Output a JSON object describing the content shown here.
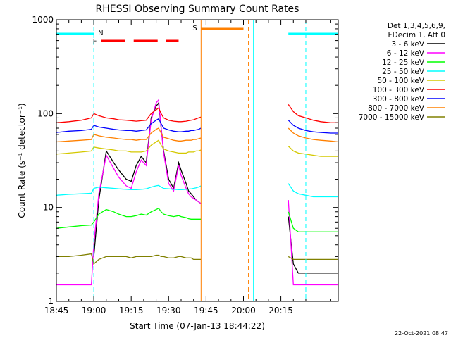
{
  "chart_data": {
    "type": "line",
    "title": "RHESSI Observing Summary Count Rates",
    "xlabel": "Start Time (07-Jan-13 18:44:22)",
    "ylabel": "Count Rate (s⁻¹ detector⁻¹)",
    "y_scale": "log",
    "ylim": [
      1,
      1000
    ],
    "xlim_min": [
      0,
      113
    ],
    "x_ticks": [
      {
        "min": 0,
        "label": "18:45"
      },
      {
        "min": 15,
        "label": "19:00"
      },
      {
        "min": 30,
        "label": "19:15"
      },
      {
        "min": 45,
        "label": "19:30"
      },
      {
        "min": 60,
        "label": "19:45"
      },
      {
        "min": 75,
        "label": "20:00"
      },
      {
        "min": 90,
        "label": "20:15"
      }
    ],
    "y_ticks": [
      {
        "val": 1,
        "label": "1"
      },
      {
        "val": 10,
        "label": "10"
      },
      {
        "val": 100,
        "label": "100"
      },
      {
        "val": 1000,
        "label": "1000"
      }
    ],
    "legend_header": [
      "Det 1,3,4,5,6,9,",
      "FDecim 1, Att 0"
    ],
    "legend_position": "right",
    "series": [
      {
        "name": "3 - 6 keV",
        "color": "#000000"
      },
      {
        "name": "6 - 12 keV",
        "color": "#ff00ff"
      },
      {
        "name": "12 - 25 keV",
        "color": "#00ff00"
      },
      {
        "name": "25 - 50 keV",
        "color": "#00ffff"
      },
      {
        "name": "50 - 100 keV",
        "color": "#d4c800"
      },
      {
        "name": "100 - 300 keV",
        "color": "#ff0000"
      },
      {
        "name": "300 - 800 keV",
        "color": "#0000ff"
      },
      {
        "name": "800 - 7000 keV",
        "color": "#ff8000"
      },
      {
        "name": "7000 - 15000 keV",
        "color": "#808000"
      }
    ],
    "data": {
      "segment1": {
        "x": [
          0,
          5,
          10,
          14,
          15,
          17,
          20,
          23,
          25,
          28,
          30,
          32,
          34,
          36,
          38,
          40,
          41,
          42,
          43,
          45,
          47,
          49,
          50,
          52,
          53,
          54,
          55,
          56,
          57,
          58
        ],
        "100 - 300 keV": [
          80,
          82,
          85,
          90,
          100,
          95,
          90,
          88,
          86,
          85,
          84,
          83,
          84,
          85,
          100,
          110,
          115,
          100,
          90,
          85,
          83,
          82,
          82,
          83,
          84,
          85,
          86,
          88,
          90,
          92
        ],
        "300 - 800 keV": [
          63,
          65,
          66,
          68,
          75,
          72,
          70,
          68,
          67,
          66,
          66,
          65,
          66,
          67,
          78,
          85,
          88,
          78,
          70,
          67,
          65,
          64,
          64,
          65,
          65,
          66,
          66,
          67,
          68,
          70
        ],
        "800 - 7000 keV": [
          50,
          51,
          52,
          53,
          60,
          58,
          56,
          55,
          54,
          53,
          53,
          52,
          53,
          53,
          62,
          68,
          70,
          62,
          56,
          54,
          52,
          51,
          51,
          52,
          52,
          52,
          53,
          53,
          54,
          55
        ],
        "50 - 100 keV": [
          37,
          38,
          39,
          40,
          44,
          43,
          42,
          41,
          40,
          40,
          39,
          39,
          39,
          40,
          46,
          50,
          52,
          46,
          42,
          40,
          39,
          38,
          38,
          38,
          39,
          39,
          39,
          40,
          40,
          41
        ],
        "25 - 50 keV": [
          13.5,
          13.8,
          14,
          14.2,
          16,
          16.5,
          16.2,
          16,
          15.8,
          15.6,
          15.5,
          15.5,
          15.6,
          15.8,
          16.5,
          17,
          17.2,
          16.5,
          16,
          15.8,
          15.6,
          15.5,
          15.5,
          15.6,
          15.7,
          15.8,
          16,
          16.2,
          16.5,
          17
        ],
        "3 - 6 keV": [
          null,
          null,
          null,
          null,
          3.0,
          12,
          40,
          30,
          25,
          20,
          19,
          28,
          35,
          30,
          90,
          120,
          130,
          70,
          40,
          20,
          16,
          30,
          25,
          18,
          15,
          14,
          13,
          12,
          11.5,
          11
        ],
        "6 - 12 keV": [
          1.5,
          1.5,
          1.5,
          1.5,
          4,
          14,
          36,
          26,
          21,
          17,
          16,
          24,
          32,
          28,
          85,
          130,
          140,
          70,
          38,
          18,
          15,
          28,
          22,
          16,
          14,
          13,
          12.5,
          12,
          11.5,
          11
        ],
        "12 - 25 keV": [
          6,
          6.2,
          6.4,
          6.5,
          7,
          8.5,
          9.5,
          9,
          8.5,
          8,
          8,
          8.2,
          8.5,
          8.3,
          9,
          9.5,
          9.8,
          9,
          8.5,
          8.2,
          8,
          8.2,
          8,
          7.8,
          7.6,
          7.5,
          7.5,
          7.5,
          7.5,
          7.5
        ],
        "7000 - 15000 keV": [
          3,
          3,
          3.1,
          3.2,
          2.5,
          2.8,
          3,
          3,
          3,
          3,
          2.9,
          3,
          3,
          3,
          3,
          3.1,
          3.1,
          3,
          3,
          2.9,
          2.9,
          3,
          3,
          2.9,
          2.9,
          2.9,
          2.8,
          2.8,
          2.8,
          2.8
        ]
      },
      "segment2": {
        "x": [
          93,
          95,
          97,
          100,
          103,
          106,
          110,
          113
        ],
        "100 - 300 keV": [
          125,
          105,
          95,
          90,
          85,
          82,
          80,
          80
        ],
        "300 - 800 keV": [
          85,
          75,
          70,
          66,
          64,
          63,
          62,
          62
        ],
        "800 - 7000 keV": [
          70,
          62,
          58,
          55,
          53,
          52,
          51,
          50
        ],
        "50 - 100 keV": [
          45,
          40,
          38,
          37,
          36,
          35,
          35,
          35
        ],
        "25 - 50 keV": [
          18,
          15,
          14,
          13.5,
          13,
          13,
          13,
          13
        ],
        "3 - 6 keV": [
          8,
          2.5,
          2,
          2,
          2,
          2,
          2,
          2
        ],
        "6 - 12 keV": [
          12,
          1.5,
          1.5,
          1.5,
          1.5,
          1.5,
          1.5,
          1.5
        ],
        "12 - 25 keV": [
          9,
          6,
          5.5,
          5.5,
          5.5,
          5.5,
          5.5,
          5.5
        ],
        "7000 - 15000 keV": [
          3,
          2.8,
          2.8,
          2.8,
          2.8,
          2.8,
          2.8,
          2.8
        ]
      }
    },
    "annotations": {
      "night_bars": [
        {
          "label": "N",
          "x_start": 0,
          "x_end": 15,
          "color": "#00ffff"
        },
        {
          "label": "",
          "x_start": 93,
          "x_end": 113,
          "color": "#00ffff"
        }
      ],
      "flare_bars": [
        {
          "label": "F",
          "x_start": 18,
          "x_end": 49,
          "color": "#ff0000"
        }
      ],
      "saa_bars": [
        {
          "label": "S",
          "x_start": 58,
          "x_end": 75,
          "color": "#ff8000"
        }
      ],
      "vlines": [
        {
          "x": 15,
          "color": "#00ffff",
          "dash": true
        },
        {
          "x": 58,
          "color": "#ff8000",
          "dash": false
        },
        {
          "x": 77,
          "color": "#ff8000",
          "dash": true
        },
        {
          "x": 79,
          "color": "#00ffff",
          "dash": false
        },
        {
          "x": 100,
          "color": "#00ffff",
          "dash": true
        }
      ]
    },
    "grid": false
  },
  "timestamp": "22-Oct-2021 08:47"
}
